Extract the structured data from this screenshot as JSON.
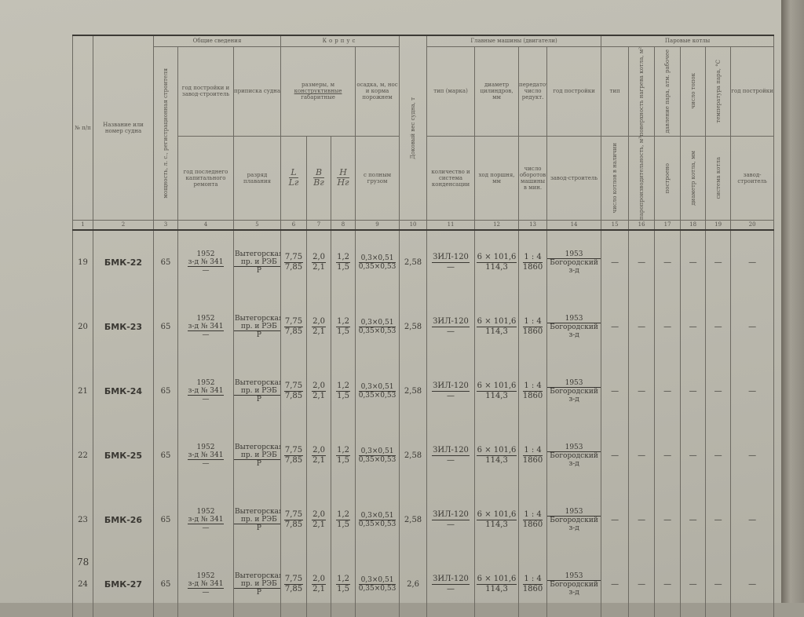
{
  "header": {
    "col1": "№ п/п",
    "col2": "Название или номер судна",
    "group_general": "Общие сведения",
    "col3": "мощность, л. с., регистрационная строителя",
    "col4_top": "год постройки и завод-строитель",
    "col4_bottom": "год последнего капитального ремонта",
    "col5_top": "приписка судна",
    "col5_bottom": "разряд плавания",
    "group_hull": "Корпус",
    "dims_top": "размеры, м",
    "dims_mid": "конструктивные",
    "dims_bottom": "габаритные",
    "col6_t": "L",
    "col6_b": "Lг",
    "col7_t": "B",
    "col7_b": "Bг",
    "col8_t": "H",
    "col8_b": "Hг",
    "col9_top": "осадка, м, нос и корма порожнем",
    "col9_bottom": "с полным грузом",
    "col10": "Доковый вес судна, т",
    "group_engines": "Главные машины (двигатели)",
    "col11_top": "тип (марка)",
    "col11_bottom": "количество и система конденсации",
    "col12_top": "диаметр цилиндров, мм",
    "col12_bottom": "ход поршня, мм",
    "col13_top": "передаточное число редукт.",
    "col13_bottom": "число оборотов машины в мин.",
    "col14_top": "год постройки",
    "col14_bottom": "завод-строитель",
    "group_boilers": "Паровые котлы",
    "col15_top": "тип",
    "col15_bottom": "число котлов в наличии",
    "col16_top": "поверхность нагрева котла, м²",
    "col16_bottom": "паропроизводительность, м³",
    "col17_top": "давление пара, атм. рабочее",
    "col17_bottom": "построено",
    "col18_top": "число топок",
    "col18_bottom": "диаметр котла, мм",
    "col19_top": "температура пара, °C",
    "col19_bottom": "система котла",
    "col20_top": "год постройки",
    "col20_bottom": "завод-строитель",
    "numbers": [
      "1",
      "2",
      "3",
      "4",
      "5",
      "6",
      "7",
      "8",
      "9",
      "10",
      "11",
      "12",
      "13",
      "14",
      "15",
      "16",
      "17",
      "18",
      "19",
      "20"
    ]
  },
  "rows": [
    {
      "n": "19",
      "name": "БМК-22",
      "power": "65",
      "year": "1952",
      "yard": "з-д № 341",
      "repair": "—",
      "registry": "Вытегорская пр. и РЭБ",
      "class": "Р",
      "L": "7,75",
      "Lg": "7,85",
      "B": "2,0",
      "Bg": "2,1",
      "H": "1,2",
      "Hg": "1,5",
      "draft_empty": "0,3×0,51",
      "draft_full": "0,35×0,53",
      "weight": "2,58",
      "engine": "ЗИЛ-120",
      "engine_count": "—",
      "cyl": "6 × 101,6",
      "stroke": "114,3",
      "ratio": "1 : 4",
      "rpm": "1860",
      "eng_year": "1953",
      "builder": "Богородский з-д",
      "boilers": [
        "—",
        "—",
        "—",
        "—",
        "—",
        "—"
      ]
    },
    {
      "n": "20",
      "name": "БМК-23",
      "power": "65",
      "year": "1952",
      "yard": "з-д № 341",
      "repair": "—",
      "registry": "Вытегорская пр. и РЭБ",
      "class": "Р",
      "L": "7,75",
      "Lg": "7,85",
      "B": "2,0",
      "Bg": "2,1",
      "H": "1,2",
      "Hg": "1,5",
      "draft_empty": "0,3×0,51",
      "draft_full": "0,35×0,53",
      "weight": "2,58",
      "engine": "ЗИЛ-120",
      "engine_count": "—",
      "cyl": "6 × 101,6",
      "stroke": "114,3",
      "ratio": "1 : 4",
      "rpm": "1860",
      "eng_year": "1953",
      "builder": "Богородский з-д",
      "boilers": [
        "—",
        "—",
        "—",
        "—",
        "—",
        "—"
      ]
    },
    {
      "n": "21",
      "name": "БМК-24",
      "power": "65",
      "year": "1952",
      "yard": "з-д № 341",
      "repair": "—",
      "registry": "Вытегорская пр. и РЭБ",
      "class": "Р",
      "L": "7,75",
      "Lg": "7,85",
      "B": "2,0",
      "Bg": "2,1",
      "H": "1,2",
      "Hg": "1,5",
      "draft_empty": "0,3×0,51",
      "draft_full": "0,35×0,53",
      "weight": "2,58",
      "engine": "ЗИЛ-120",
      "engine_count": "—",
      "cyl": "6 × 101,6",
      "stroke": "114,3",
      "ratio": "1 : 4",
      "rpm": "1860",
      "eng_year": "1953",
      "builder": "Богородский з-д",
      "boilers": [
        "—",
        "—",
        "—",
        "—",
        "—",
        "—"
      ]
    },
    {
      "n": "22",
      "name": "БМК-25",
      "power": "65",
      "year": "1952",
      "yard": "з-д № 341",
      "repair": "—",
      "registry": "Вытегорская пр. и РЭБ",
      "class": "Р",
      "L": "7,75",
      "Lg": "7,85",
      "B": "2,0",
      "Bg": "2,1",
      "H": "1,2",
      "Hg": "1,5",
      "draft_empty": "0,3×0,51",
      "draft_full": "0,35×0,53",
      "weight": "2,58",
      "engine": "ЗИЛ-120",
      "engine_count": "—",
      "cyl": "6 × 101,6",
      "stroke": "114,3",
      "ratio": "1 : 4",
      "rpm": "1860",
      "eng_year": "1953",
      "builder": "Богородский з-д",
      "boilers": [
        "—",
        "—",
        "—",
        "—",
        "—",
        "—"
      ]
    },
    {
      "n": "23",
      "name": "БМК-26",
      "power": "65",
      "year": "1952",
      "yard": "з-д № 341",
      "repair": "—",
      "registry": "Вытегорская пр. и РЭБ",
      "class": "Р",
      "L": "7,75",
      "Lg": "7,85",
      "B": "2,0",
      "Bg": "2,1",
      "H": "1,2",
      "Hg": "1,5",
      "draft_empty": "0,3×0,51",
      "draft_full": "0,35×0,53",
      "weight": "2,58",
      "engine": "ЗИЛ-120",
      "engine_count": "—",
      "cyl": "6 × 101,6",
      "stroke": "114,3",
      "ratio": "1 : 4",
      "rpm": "1860",
      "eng_year": "1953",
      "builder": "Богородский з-д",
      "boilers": [
        "—",
        "—",
        "—",
        "—",
        "—",
        "—"
      ]
    },
    {
      "n": "24",
      "name": "БМК-27",
      "power": "65",
      "year": "1952",
      "yard": "з-д № 341",
      "repair": "—",
      "registry": "Вытегорская пр. и РЭБ",
      "class": "Р",
      "L": "7,75",
      "Lg": "7,85",
      "B": "2,0",
      "Bg": "2,1",
      "H": "1,2",
      "Hg": "1,5",
      "draft_empty": "0,3×0,51",
      "draft_full": "0,35×0,53",
      "weight": "2,6",
      "engine": "ЗИЛ-120",
      "engine_count": "—",
      "cyl": "6 × 101,6",
      "stroke": "114,3",
      "ratio": "1 : 4",
      "rpm": "1860",
      "eng_year": "1953",
      "builder": "Богородский з-д",
      "boilers": [
        "—",
        "—",
        "—",
        "—",
        "—",
        "—"
      ]
    }
  ],
  "page_number": "78"
}
